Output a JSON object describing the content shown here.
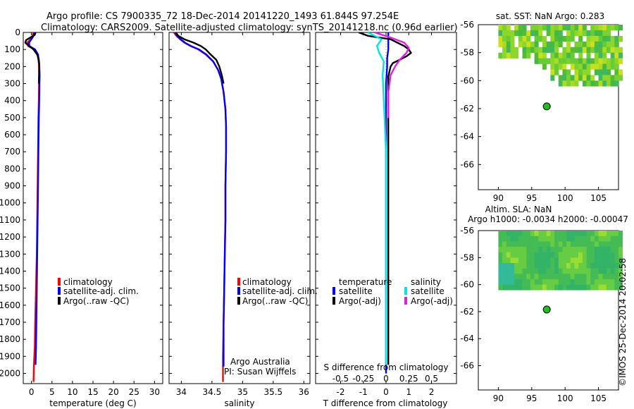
{
  "header": {
    "line1": "Argo profile: CS 7900335_72 18-Dec-2014 20141220_1493 61.844S 97.254E",
    "line2": "Climatology: CARS2009. Satellite-adjusted climatology: synTS_20141218.nc (0.96d earlier)"
  },
  "colors": {
    "climatology": "#ff0000",
    "satellite": "#0000ff",
    "argo": "#000000",
    "sal_satellite": "#00e5e5",
    "sal_argo": "#e020e0",
    "argo_marker": "#22bb22"
  },
  "depth_ticks": [
    "0",
    "100",
    "200",
    "300",
    "400",
    "500",
    "600",
    "700",
    "800",
    "900",
    "1000",
    "1100",
    "1200",
    "1300",
    "1400",
    "1500",
    "1600",
    "1700",
    "1800",
    "1900",
    "2000"
  ],
  "chart_data": [
    {
      "type": "line",
      "id": "temperature",
      "xlabel": "temperature (deg C)",
      "xlim": [
        -2,
        32
      ],
      "ylim": [
        2060,
        0
      ],
      "xticks": [
        "0",
        "5",
        "10",
        "15",
        "20",
        "25",
        "30"
      ],
      "xtick_values": [
        0,
        5,
        10,
        15,
        20,
        25,
        30
      ],
      "legend": [
        "climatology",
        "satellite-adj. clim.",
        "Argo(..raw -QC)"
      ],
      "series": [
        {
          "name": "climatology",
          "color": "#ff0000",
          "x": [
            0.5,
            0.3,
            -0.2,
            -1.0,
            -0.8,
            0.8,
            1.5,
            1.8,
            1.9,
            1.85,
            1.8,
            1.7,
            1.6,
            1.5,
            1.4,
            1.3,
            1.1,
            0.9,
            0.8,
            0.6,
            0.5
          ],
          "y": [
            0,
            20,
            40,
            60,
            80,
            100,
            130,
            180,
            250,
            300,
            400,
            500,
            700,
            900,
            1100,
            1300,
            1500,
            1700,
            1850,
            1950,
            2050
          ]
        },
        {
          "name": "satellite-adj. clim.",
          "color": "#0000ff",
          "x": [
            0.7,
            0.5,
            0.0,
            -0.6,
            -0.5,
            0.9,
            1.6,
            1.9,
            2.0,
            1.95,
            1.9,
            1.8,
            1.7,
            1.6,
            1.5,
            1.4,
            1.3,
            1.2,
            1.1,
            1.0
          ],
          "y": [
            0,
            20,
            40,
            60,
            80,
            100,
            130,
            180,
            250,
            300,
            400,
            500,
            700,
            900,
            1100,
            1300,
            1500,
            1700,
            1850,
            1950
          ]
        },
        {
          "name": "Argo(..raw -QC)",
          "color": "#000000",
          "x": [
            1.0,
            0.8,
            -0.3,
            -1.3,
            -1.5,
            -0.6,
            0.5,
            1.4,
            1.8,
            1.9,
            1.85,
            1.8
          ],
          "y": [
            0,
            15,
            30,
            45,
            60,
            80,
            100,
            130,
            160,
            200,
            250,
            300
          ]
        }
      ]
    },
    {
      "type": "line",
      "id": "salinity",
      "xlabel": "salinity",
      "xlim": [
        33.8,
        36.1
      ],
      "ylim": [
        2060,
        0
      ],
      "xticks": [
        "34",
        "34.5",
        "35",
        "35.5",
        "36"
      ],
      "xtick_values": [
        34,
        34.5,
        35,
        35.5,
        36
      ],
      "legend": [
        "climatology",
        "satellite-adj. clim.",
        "Argo(..raw -QC)"
      ],
      "annotations": [
        "Argo Australia",
        "PI: Susan Wijffels"
      ],
      "series": [
        {
          "name": "climatology",
          "color": "#ff0000",
          "x": [
            33.88,
            33.92,
            33.98,
            34.05,
            34.15,
            34.28,
            34.4,
            34.52,
            34.6,
            34.65,
            34.69,
            34.72,
            34.73,
            34.73,
            34.72,
            34.72,
            34.71,
            34.7,
            34.69,
            34.68,
            34.68
          ],
          "y": [
            0,
            20,
            40,
            60,
            80,
            100,
            130,
            170,
            220,
            270,
            350,
            450,
            550,
            700,
            900,
            1100,
            1300,
            1500,
            1700,
            1900,
            2050
          ]
        },
        {
          "name": "satellite-adj. clim.",
          "color": "#0000ff",
          "x": [
            33.9,
            33.93,
            33.99,
            34.06,
            34.16,
            34.29,
            34.41,
            34.52,
            34.6,
            34.65,
            34.69,
            34.72,
            34.73,
            34.73,
            34.72,
            34.72,
            34.71,
            34.7,
            34.69,
            34.69
          ],
          "y": [
            0,
            20,
            40,
            60,
            80,
            100,
            130,
            170,
            220,
            270,
            350,
            450,
            550,
            700,
            900,
            1100,
            1300,
            1500,
            1700,
            1960
          ]
        },
        {
          "name": "Argo(..raw -QC)",
          "color": "#000000",
          "x": [
            33.91,
            33.95,
            34.05,
            34.2,
            34.32,
            34.4,
            34.48,
            34.57,
            34.62,
            34.66,
            34.69
          ],
          "y": [
            0,
            20,
            40,
            60,
            80,
            100,
            130,
            160,
            200,
            250,
            300
          ]
        }
      ]
    },
    {
      "type": "line",
      "id": "difference",
      "xlabel": "T difference from climatology",
      "top_axis_label": "S difference from climatology",
      "xlim": [
        -3.1,
        3.1
      ],
      "ylim": [
        2060,
        0
      ],
      "xticks": [
        "-2",
        "-1",
        "0",
        "1",
        "2"
      ],
      "xtick_values": [
        -2,
        -1,
        0,
        1,
        2
      ],
      "top_ticks": [
        "-0.5",
        "-0.25",
        "0",
        "0.25",
        "0.5"
      ],
      "top_tick_values": [
        -2,
        -1,
        0,
        1,
        2
      ],
      "legend_temperature": {
        "title": "temperature",
        "entries": [
          "satellite",
          "Argo(-adj)"
        ]
      },
      "legend_salinity": {
        "title": "salinity",
        "entries": [
          "satellite",
          "Argo(-adj)"
        ]
      },
      "series": [
        {
          "name": "temperature satellite",
          "color": "#0000ff",
          "x": [
            0.1,
            0.1,
            0.1,
            0.05,
            0.05,
            0.0,
            0.0,
            0.0,
            0.0,
            0.0,
            0.0,
            0.0,
            0.0
          ],
          "y": [
            0,
            50,
            100,
            150,
            200,
            300,
            500,
            700,
            1000,
            1300,
            1600,
            1800,
            2000
          ]
        },
        {
          "name": "temperature Argo(-adj)",
          "color": "#000000",
          "x": [
            -1.2,
            -0.8,
            0.2,
            0.5,
            0.8,
            1.0,
            1.1,
            0.9,
            0.6,
            0.3,
            0.2,
            0.15,
            0.1,
            0.1,
            0.1,
            0.1,
            0.1
          ],
          "y": [
            0,
            20,
            40,
            60,
            80,
            100,
            120,
            140,
            160,
            180,
            200,
            230,
            260,
            300,
            500,
            1000,
            1950
          ]
        },
        {
          "name": "salinity satellite",
          "color": "#00e5e5",
          "x": [
            -0.8,
            -0.5,
            -0.2,
            -0.4,
            -0.3,
            -0.1,
            -0.15,
            -0.1,
            0.0,
            0.0,
            0.0
          ],
          "y": [
            0,
            20,
            40,
            80,
            120,
            170,
            250,
            400,
            700,
            1200,
            1950
          ]
        },
        {
          "name": "salinity Argo(-adj)",
          "color": "#e020e0",
          "x": [
            -0.5,
            0.2,
            0.8,
            1.0,
            0.9,
            0.6,
            0.4,
            0.2,
            0.1,
            0.1
          ],
          "y": [
            0,
            30,
            60,
            90,
            120,
            160,
            200,
            250,
            350,
            500
          ]
        }
      ]
    },
    {
      "type": "heatmap",
      "id": "sst-map",
      "title": "sat. SST: NaN Argo: 0.283",
      "xlim": [
        87,
        108
      ],
      "ylim": [
        -67.8,
        -56
      ],
      "xticks": [
        "90",
        "95",
        "100",
        "105"
      ],
      "xtick_values": [
        90,
        95,
        100,
        105
      ],
      "yticks": [
        "-56",
        "-58",
        "-60",
        "-62",
        "-64",
        "-66"
      ],
      "ytick_values": [
        -56,
        -58,
        -60,
        -62,
        -64,
        -66
      ],
      "argo_position": {
        "lon": 97.254,
        "lat": -61.844
      }
    },
    {
      "type": "heatmap",
      "id": "sla-map",
      "title": "Altim. SLA: NaN",
      "subtitle": "Argo h1000: -0.0034 h2000: -0.00047",
      "xlim": [
        87,
        108
      ],
      "ylim": [
        -67.8,
        -56
      ],
      "xticks": [
        "90",
        "95",
        "100",
        "105"
      ],
      "xtick_values": [
        90,
        95,
        100,
        105
      ],
      "yticks": [
        "-56",
        "-58",
        "-60",
        "-62",
        "-64",
        "-66"
      ],
      "ytick_values": [
        -56,
        -58,
        -60,
        -62,
        -64,
        -66
      ],
      "argo_position": {
        "lon": 97.254,
        "lat": -61.844
      }
    }
  ],
  "footer": {
    "imos_stamp": "©IMOS 25-Dec-2014 20:02:58"
  }
}
